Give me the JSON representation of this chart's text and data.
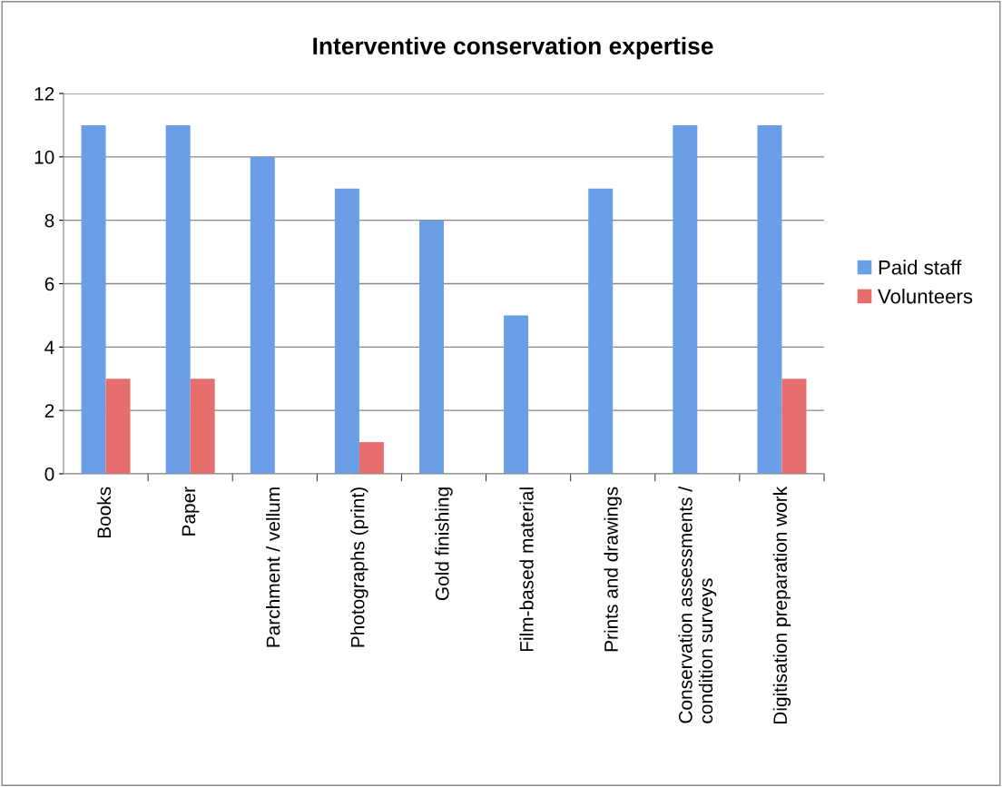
{
  "chart_data": {
    "type": "bar",
    "title": "Interventive conservation expertise",
    "categories": [
      "Books",
      "Paper",
      "Parchment / vellum",
      "Photographs (print)",
      "Gold finishing",
      "Film-based material",
      "Prints and drawings",
      "Conservation assessments /\ncondition surveys",
      "Digitisation preparation work"
    ],
    "series": [
      {
        "name": "Paid staff",
        "color": "#6a9ee6",
        "values": [
          11,
          11,
          10,
          9,
          8,
          5,
          9,
          11,
          11
        ]
      },
      {
        "name": "Volunteers",
        "color": "#e86e6e",
        "values": [
          3,
          3,
          null,
          1,
          null,
          null,
          null,
          null,
          3
        ]
      }
    ],
    "ylim": [
      0,
      12
    ],
    "yticks": [
      0,
      2,
      4,
      6,
      8,
      10,
      12
    ],
    "grid": "y",
    "legend": "right"
  }
}
